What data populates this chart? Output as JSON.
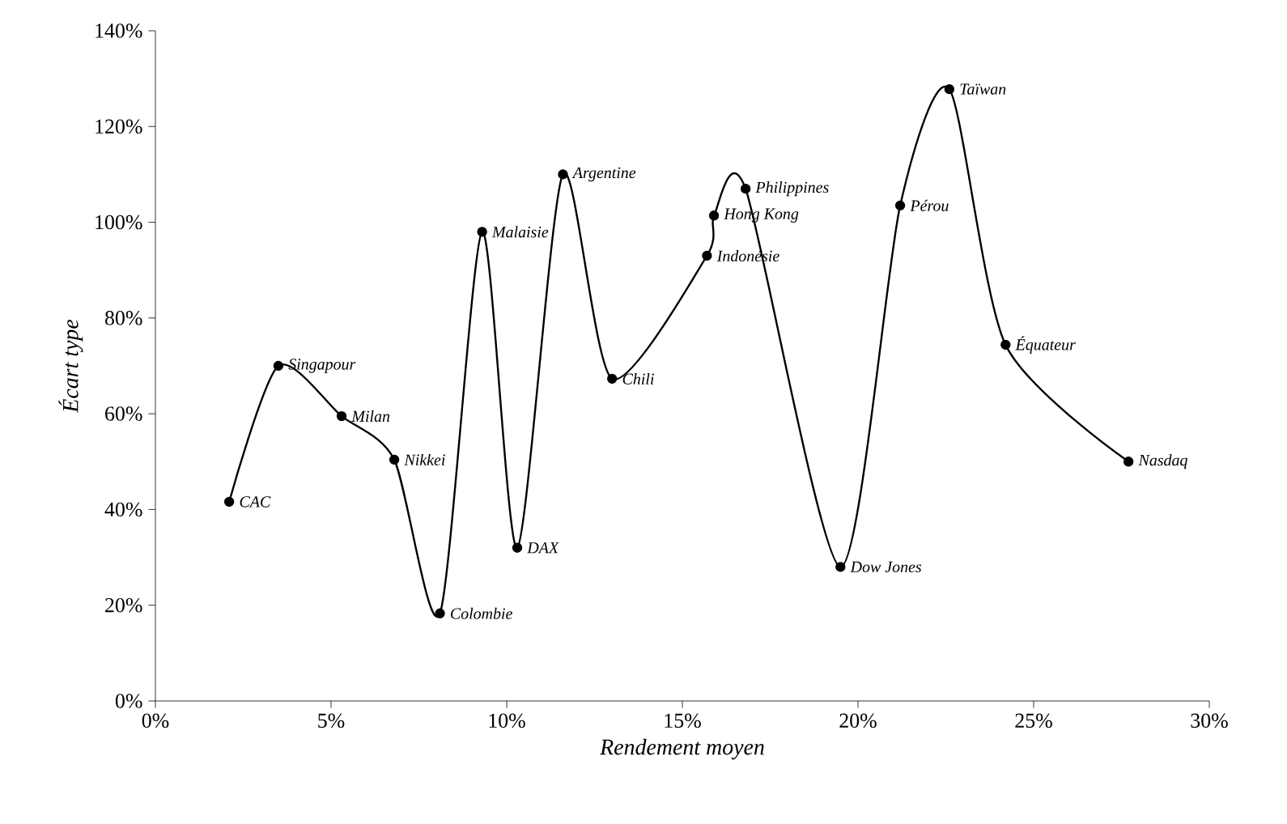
{
  "chart_data": {
    "type": "line",
    "xlabel": "Rendement moyen",
    "ylabel": "Écart type",
    "x": [
      2.1,
      3.5,
      5.3,
      6.8,
      8.1,
      9.3,
      10.3,
      11.6,
      13.0,
      15.7,
      15.9,
      16.8,
      19.5,
      21.2,
      22.6,
      24.2,
      27.7
    ],
    "series": [
      {
        "color": "#000000",
        "values": [
          41.6,
          70,
          59.5,
          50.4,
          18.3,
          98,
          32,
          110,
          67.3,
          93,
          101.4,
          107,
          28,
          103.5,
          127.8,
          74.4,
          50
        ]
      }
    ],
    "xlim": [
      0,
      30
    ],
    "ylim": [
      0,
      140
    ],
    "xticks": [
      {
        "value": 0,
        "label": "0%"
      },
      {
        "value": 5,
        "label": "5%"
      },
      {
        "value": 10,
        "label": "10%"
      },
      {
        "value": 15,
        "label": "15%"
      },
      {
        "value": 20,
        "label": "20%"
      },
      {
        "value": 25,
        "label": "25%"
      },
      {
        "value": 30,
        "label": "30%"
      }
    ],
    "yticks": [
      {
        "value": 0,
        "label": "0%"
      },
      {
        "value": 20,
        "label": "20%"
      },
      {
        "value": 40,
        "label": "40%"
      },
      {
        "value": 60,
        "label": "60%"
      },
      {
        "value": 80,
        "label": "80%"
      },
      {
        "value": 100,
        "label": "100%"
      },
      {
        "value": 120,
        "label": "120%"
      },
      {
        "value": 140,
        "label": "140%"
      }
    ],
    "annotations": [
      {
        "text": "CAC",
        "x": 2.1,
        "y": 41.6
      },
      {
        "text": "Singapour",
        "x": 3.5,
        "y": 70
      },
      {
        "text": "Milan",
        "x": 5.3,
        "y": 59.5
      },
      {
        "text": "Nikkei",
        "x": 6.8,
        "y": 50.4
      },
      {
        "text": "Colombie",
        "x": 8.1,
        "y": 18.3
      },
      {
        "text": "Malaisie",
        "x": 9.3,
        "y": 98
      },
      {
        "text": "DAX",
        "x": 10.3,
        "y": 32
      },
      {
        "text": "Argentine",
        "x": 11.6,
        "y": 110
      },
      {
        "text": "Chili",
        "x": 13.0,
        "y": 67.3
      },
      {
        "text": "Indonésie",
        "x": 15.7,
        "y": 93
      },
      {
        "text": "Hong Kong",
        "x": 15.9,
        "y": 101.4
      },
      {
        "text": "Philippines",
        "x": 16.8,
        "y": 107
      },
      {
        "text": "Dow Jones",
        "x": 19.5,
        "y": 28
      },
      {
        "text": "Pérou",
        "x": 21.2,
        "y": 103.5
      },
      {
        "text": "Taïwan",
        "x": 22.6,
        "y": 127.8
      },
      {
        "text": "Équateur",
        "x": 24.2,
        "y": 74.4
      },
      {
        "text": "Nasdaq",
        "x": 27.7,
        "y": 50
      }
    ],
    "marker": "circle",
    "line_style": "solid"
  }
}
